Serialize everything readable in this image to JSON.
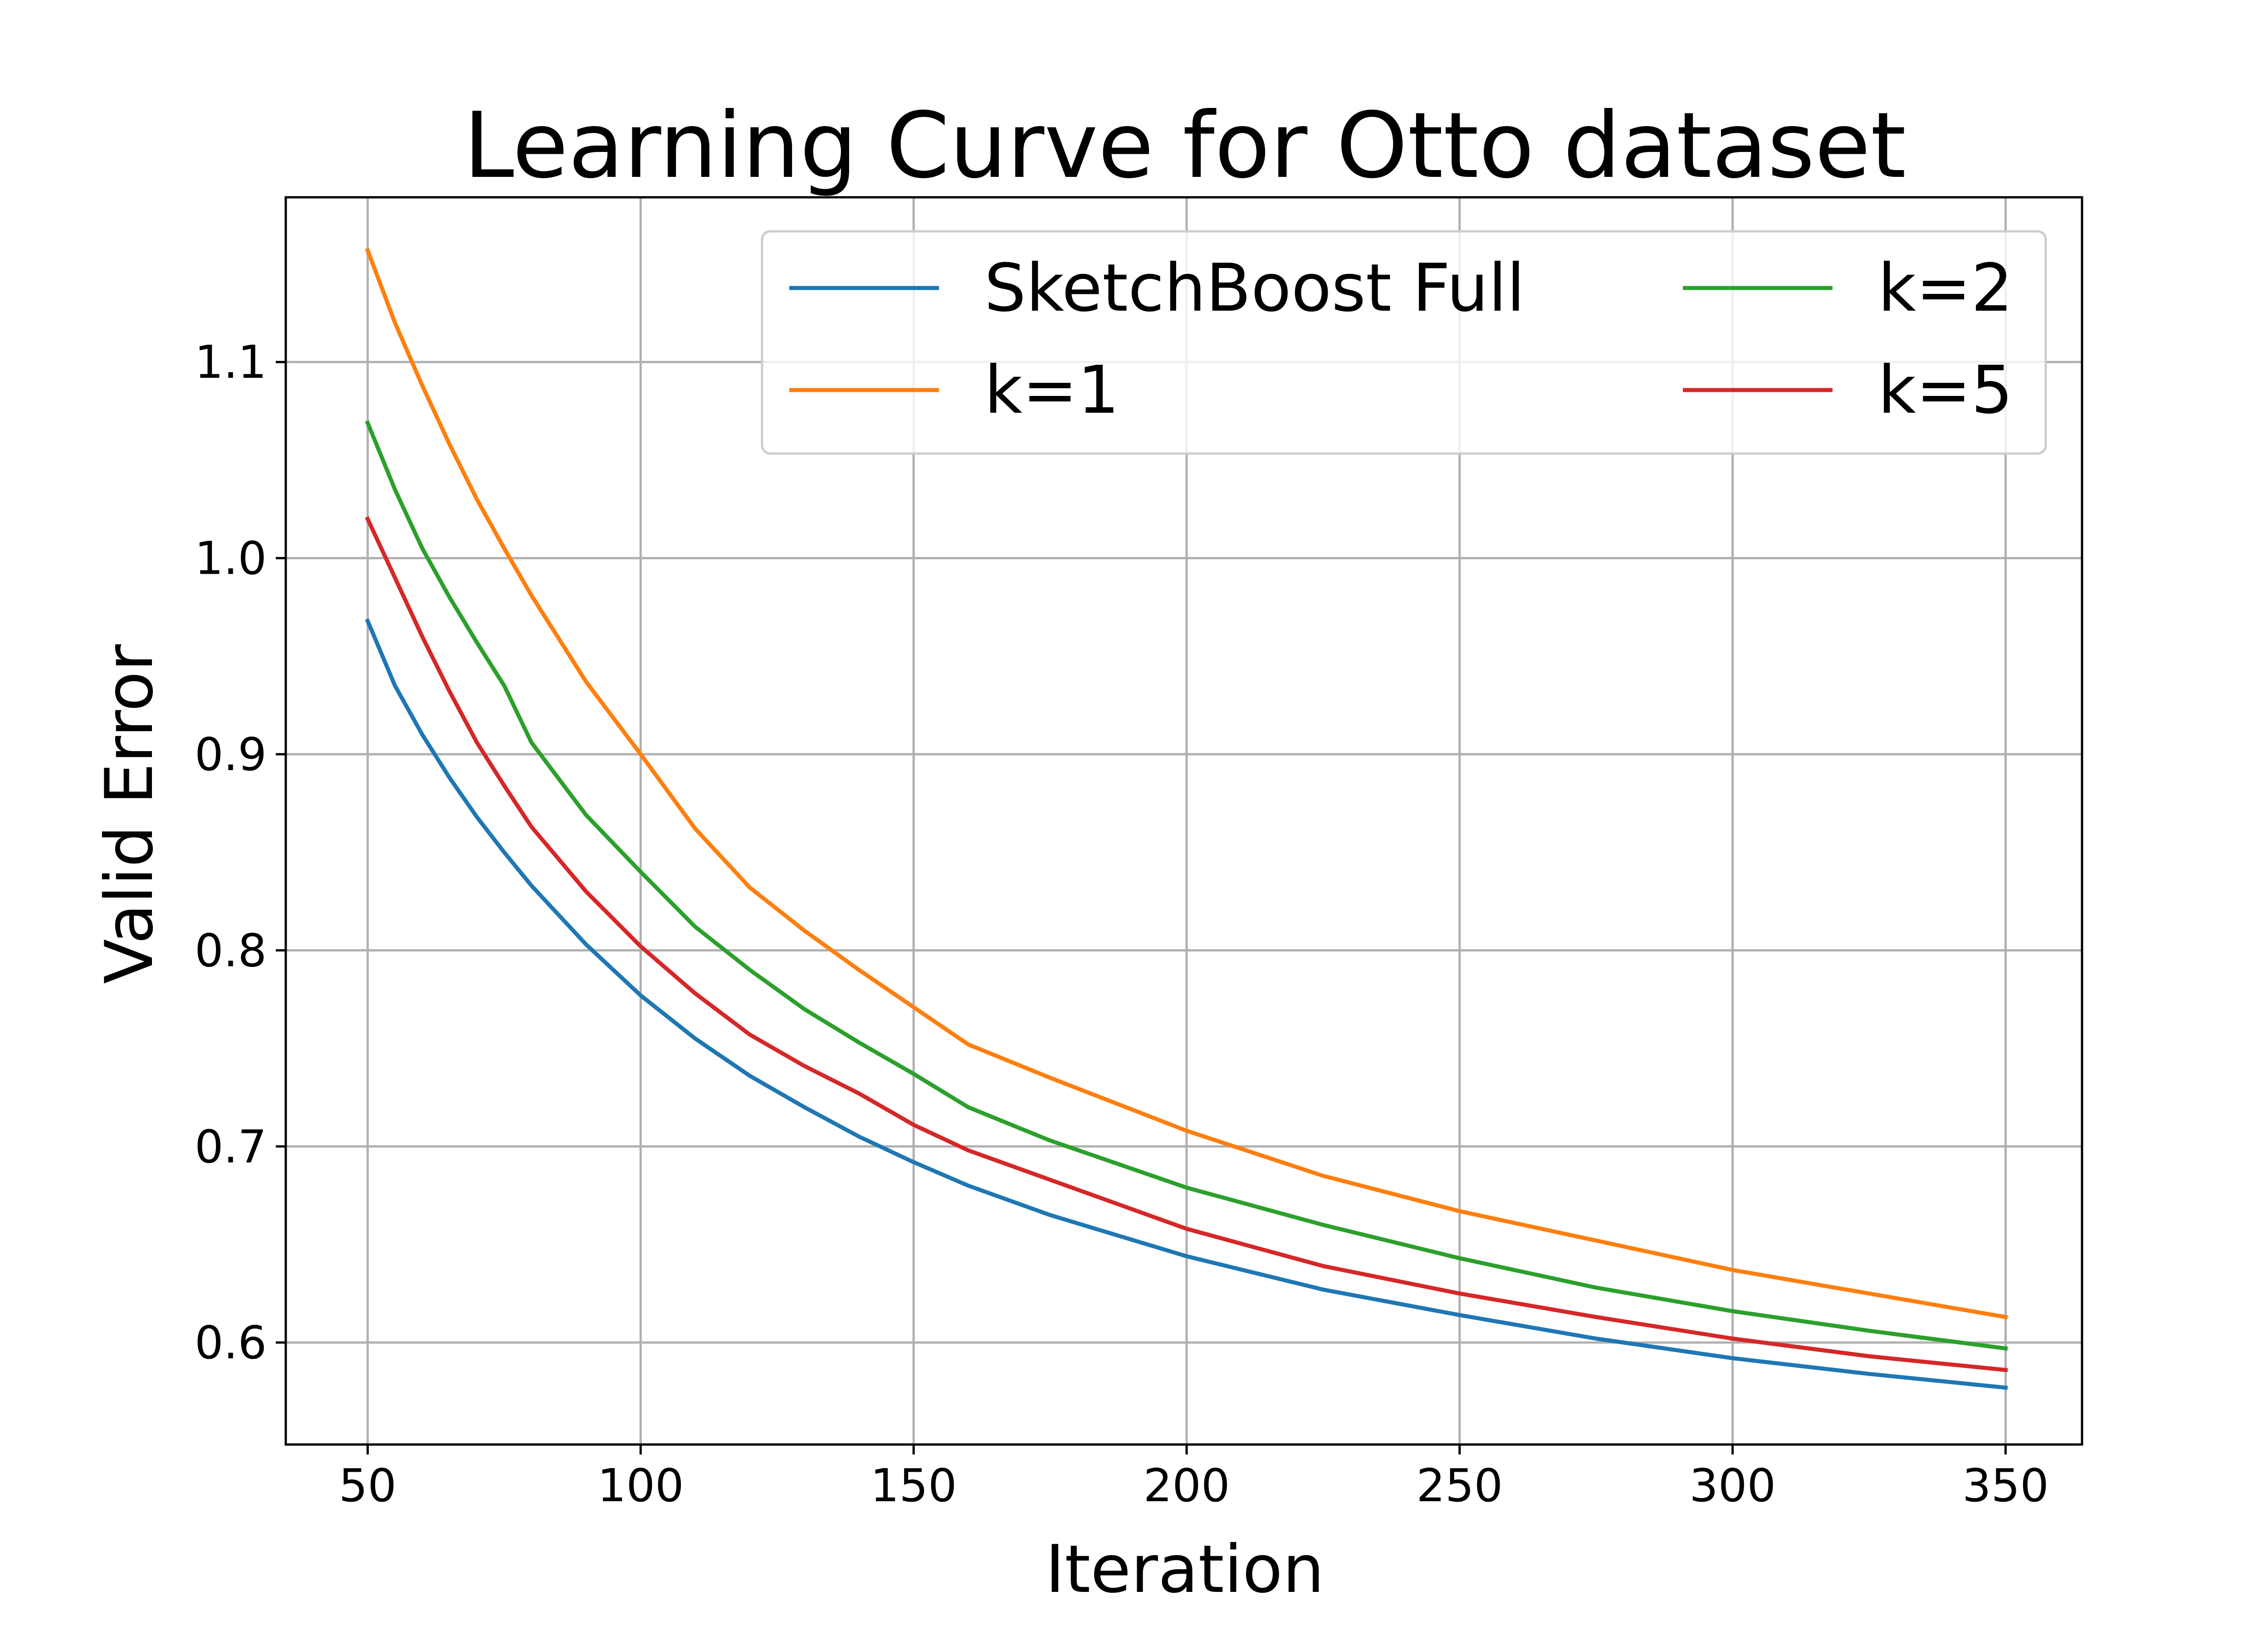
{
  "chart_data": {
    "type": "line",
    "title": "Learning Curve for Otto dataset",
    "xlabel": "Iteration",
    "ylabel": "Valid Error",
    "xlim": [
      35,
      364
    ],
    "ylim": [
      0.548,
      1.184
    ],
    "xticks": [
      50,
      100,
      150,
      200,
      250,
      300,
      350
    ],
    "yticks": [
      0.6,
      0.7,
      0.8,
      0.9,
      1.0,
      1.1
    ],
    "ytick_labels": [
      "0.6",
      "0.7",
      "0.8",
      "0.9",
      "1.0",
      "1.1"
    ],
    "grid": true,
    "legend_placement": "top-right",
    "legend_columns": 2,
    "x": [
      50,
      55,
      60,
      65,
      70,
      75,
      80,
      90,
      100,
      110,
      120,
      130,
      140,
      150,
      160,
      175,
      200,
      225,
      250,
      275,
      300,
      325,
      350
    ],
    "series": [
      {
        "name": "SketchBoost Full",
        "color": "#1f77b4",
        "values": [
          0.968,
          0.935,
          0.91,
          0.888,
          0.868,
          0.85,
          0.833,
          0.803,
          0.777,
          0.755,
          0.736,
          0.72,
          0.705,
          0.692,
          0.68,
          0.665,
          0.644,
          0.627,
          0.614,
          0.602,
          0.592,
          0.584,
          0.577
        ]
      },
      {
        "name": "k=1",
        "color": "#ff7f0e",
        "values": [
          1.157,
          1.12,
          1.088,
          1.058,
          1.03,
          1.005,
          0.981,
          0.937,
          0.9,
          0.862,
          0.832,
          0.81,
          0.79,
          0.771,
          0.752,
          0.735,
          0.708,
          0.685,
          0.667,
          0.652,
          0.637,
          0.625,
          0.613
        ]
      },
      {
        "name": "k=2",
        "color": "#2ca02c",
        "values": [
          1.069,
          1.035,
          1.005,
          0.98,
          0.957,
          0.935,
          0.906,
          0.869,
          0.84,
          0.812,
          0.79,
          0.77,
          0.753,
          0.737,
          0.72,
          0.703,
          0.679,
          0.66,
          0.643,
          0.628,
          0.616,
          0.606,
          0.597
        ]
      },
      {
        "name": "k=5",
        "color": "#d62728",
        "values": [
          1.02,
          0.99,
          0.96,
          0.932,
          0.906,
          0.884,
          0.863,
          0.83,
          0.802,
          0.778,
          0.757,
          0.741,
          0.727,
          0.711,
          0.698,
          0.683,
          0.658,
          0.639,
          0.625,
          0.613,
          0.602,
          0.593,
          0.586
        ]
      }
    ]
  }
}
